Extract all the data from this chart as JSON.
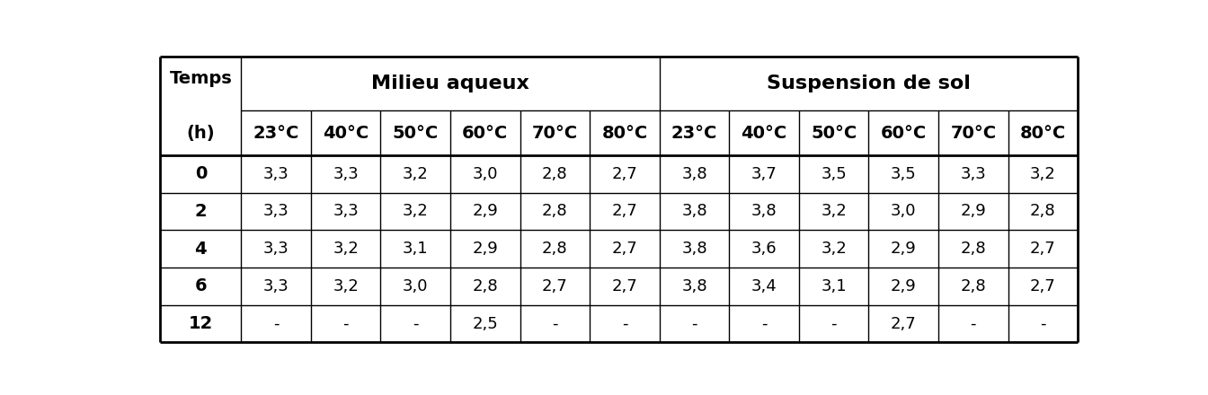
{
  "temp_labels": [
    "23°C",
    "40°C",
    "50°C",
    "60°C",
    "70°C",
    "80°C"
  ],
  "rows": [
    [
      "0",
      "3,3",
      "3,3",
      "3,2",
      "3,0",
      "2,8",
      "2,7",
      "3,8",
      "3,7",
      "3,5",
      "3,5",
      "3,3",
      "3,2"
    ],
    [
      "2",
      "3,3",
      "3,3",
      "3,2",
      "2,9",
      "2,8",
      "2,7",
      "3,8",
      "3,8",
      "3,2",
      "3,0",
      "2,9",
      "2,8"
    ],
    [
      "4",
      "3,3",
      "3,2",
      "3,1",
      "2,9",
      "2,8",
      "2,7",
      "3,8",
      "3,6",
      "3,2",
      "2,9",
      "2,8",
      "2,7"
    ],
    [
      "6",
      "3,3",
      "3,2",
      "3,0",
      "2,8",
      "2,7",
      "2,7",
      "3,8",
      "3,4",
      "3,1",
      "2,9",
      "2,8",
      "2,7"
    ],
    [
      "12",
      "-",
      "-",
      "-",
      "2,5",
      "-",
      "-",
      "-",
      "-",
      "-",
      "2,7",
      "-",
      "-"
    ]
  ],
  "background_color": "#ffffff",
  "text_color": "#000000",
  "header_fontsize": 14,
  "data_fontsize": 13,
  "time_fontsize": 14,
  "fig_width": 13.44,
  "fig_height": 4.4,
  "dpi": 100
}
